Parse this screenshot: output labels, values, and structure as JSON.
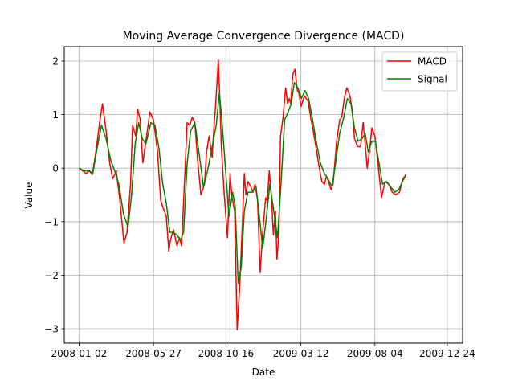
{
  "chart_data": {
    "type": "line",
    "title": "Moving Average Convergence Divergence (MACD)",
    "xlabel": "Date",
    "ylabel": "Value",
    "x_start": "2008-01-02",
    "x_end": "2009-12-31",
    "xlim": [
      "2007-12-04",
      "2010-01-23"
    ],
    "ylim": [
      -3.27,
      2.27
    ],
    "grid": true,
    "legend_position": "top-right",
    "x_ticks": [
      "2008-01-02",
      "2008-05-27",
      "2008-10-16",
      "2009-03-12",
      "2009-08-04",
      "2009-12-24"
    ],
    "y_ticks": [
      -3,
      -2,
      -1,
      0,
      1,
      2
    ],
    "series": [
      {
        "name": "MACD",
        "color": "#ff0000",
        "points": [
          [
            "2008-01-02",
            0.0
          ],
          [
            "2008-01-09",
            -0.05
          ],
          [
            "2008-01-16",
            -0.1
          ],
          [
            "2008-01-22",
            -0.05
          ],
          [
            "2008-01-28",
            -0.12
          ],
          [
            "2008-02-04",
            0.3
          ],
          [
            "2008-02-12",
            0.9
          ],
          [
            "2008-02-17",
            1.2
          ],
          [
            "2008-02-24",
            0.7
          ],
          [
            "2008-03-02",
            0.1
          ],
          [
            "2008-03-08",
            -0.2
          ],
          [
            "2008-03-15",
            -0.05
          ],
          [
            "2008-03-22",
            -0.6
          ],
          [
            "2008-03-30",
            -1.4
          ],
          [
            "2008-04-05",
            -1.2
          ],
          [
            "2008-04-12",
            -0.3
          ],
          [
            "2008-04-16",
            0.8
          ],
          [
            "2008-04-22",
            0.6
          ],
          [
            "2008-04-26",
            1.1
          ],
          [
            "2008-05-01",
            0.9
          ],
          [
            "2008-05-06",
            0.1
          ],
          [
            "2008-05-12",
            0.5
          ],
          [
            "2008-05-20",
            1.05
          ],
          [
            "2008-05-27",
            0.9
          ],
          [
            "2008-06-04",
            0.3
          ],
          [
            "2008-06-10",
            -0.6
          ],
          [
            "2008-06-15",
            -0.75
          ],
          [
            "2008-06-21",
            -0.9
          ],
          [
            "2008-06-26",
            -1.55
          ],
          [
            "2008-06-29",
            -1.35
          ],
          [
            "2008-07-05",
            -1.15
          ],
          [
            "2008-07-12",
            -1.45
          ],
          [
            "2008-07-17",
            -1.3
          ],
          [
            "2008-07-21",
            -1.45
          ],
          [
            "2008-07-28",
            0.0
          ],
          [
            "2008-08-01",
            0.85
          ],
          [
            "2008-08-06",
            0.8
          ],
          [
            "2008-08-11",
            0.95
          ],
          [
            "2008-08-16",
            0.85
          ],
          [
            "2008-08-21",
            0.2
          ],
          [
            "2008-08-28",
            -0.5
          ],
          [
            "2008-09-04",
            -0.3
          ],
          [
            "2008-09-08",
            0.3
          ],
          [
            "2008-09-13",
            0.6
          ],
          [
            "2008-09-19",
            0.2
          ],
          [
            "2008-09-22",
            0.7
          ],
          [
            "2008-09-26",
            1.2
          ],
          [
            "2008-10-01",
            2.02
          ],
          [
            "2008-10-04",
            1.3
          ],
          [
            "2008-10-07",
            0.4
          ],
          [
            "2008-10-12",
            -0.4
          ],
          [
            "2008-10-19",
            -1.3
          ],
          [
            "2008-10-24",
            -0.1
          ],
          [
            "2008-10-28",
            -0.55
          ],
          [
            "2008-11-02",
            -0.8
          ],
          [
            "2008-11-07",
            -3.02
          ],
          [
            "2008-11-12",
            -2.2
          ],
          [
            "2008-11-17",
            -1.1
          ],
          [
            "2008-11-21",
            -0.1
          ],
          [
            "2008-11-24",
            -0.5
          ],
          [
            "2008-11-28",
            -0.25
          ],
          [
            "2008-12-04",
            -0.35
          ],
          [
            "2008-12-08",
            -0.45
          ],
          [
            "2008-12-12",
            -0.3
          ],
          [
            "2008-12-17",
            -0.6
          ],
          [
            "2008-12-22",
            -1.95
          ],
          [
            "2008-12-27",
            -1.2
          ],
          [
            "2009-01-02",
            -0.55
          ],
          [
            "2009-01-05",
            -0.6
          ],
          [
            "2009-01-09",
            -0.05
          ],
          [
            "2009-01-13",
            -0.5
          ],
          [
            "2009-01-17",
            -1.25
          ],
          [
            "2009-01-21",
            -0.8
          ],
          [
            "2009-01-24",
            -1.7
          ],
          [
            "2009-01-28",
            -1.2
          ],
          [
            "2009-01-31",
            0.6
          ],
          [
            "2009-02-05",
            0.95
          ],
          [
            "2009-02-10",
            1.5
          ],
          [
            "2009-02-14",
            1.2
          ],
          [
            "2009-02-17",
            1.3
          ],
          [
            "2009-02-20",
            1.2
          ],
          [
            "2009-02-24",
            1.75
          ],
          [
            "2009-02-28",
            1.85
          ],
          [
            "2009-03-05",
            1.45
          ],
          [
            "2009-03-08",
            1.4
          ],
          [
            "2009-03-12",
            1.15
          ],
          [
            "2009-03-19",
            1.35
          ],
          [
            "2009-03-26",
            1.25
          ],
          [
            "2009-04-01",
            0.9
          ],
          [
            "2009-04-06",
            0.65
          ],
          [
            "2009-04-12",
            0.3
          ],
          [
            "2009-04-18",
            -0.05
          ],
          [
            "2009-04-22",
            -0.25
          ],
          [
            "2009-04-27",
            -0.3
          ],
          [
            "2009-05-01",
            -0.15
          ],
          [
            "2009-05-05",
            -0.25
          ],
          [
            "2009-05-10",
            -0.4
          ],
          [
            "2009-05-14",
            -0.3
          ],
          [
            "2009-05-21",
            0.5
          ],
          [
            "2009-05-27",
            0.9
          ],
          [
            "2009-05-31",
            0.95
          ],
          [
            "2009-06-05",
            1.3
          ],
          [
            "2009-06-10",
            1.5
          ],
          [
            "2009-06-16",
            1.35
          ],
          [
            "2009-06-21",
            1.05
          ],
          [
            "2009-06-25",
            0.55
          ],
          [
            "2009-07-01",
            0.4
          ],
          [
            "2009-07-07",
            0.4
          ],
          [
            "2009-07-12",
            0.85
          ],
          [
            "2009-07-16",
            0.45
          ],
          [
            "2009-07-20",
            0.0
          ],
          [
            "2009-07-25",
            0.35
          ],
          [
            "2009-07-29",
            0.75
          ],
          [
            "2009-08-04",
            0.6
          ],
          [
            "2009-08-11",
            0.0
          ],
          [
            "2009-08-17",
            -0.55
          ],
          [
            "2009-08-24",
            -0.25
          ],
          [
            "2009-08-31",
            -0.3
          ],
          [
            "2009-09-07",
            -0.45
          ],
          [
            "2009-09-14",
            -0.5
          ],
          [
            "2009-09-21",
            -0.45
          ],
          [
            "2009-09-28",
            -0.2
          ],
          [
            "2009-10-04",
            -0.12
          ]
        ]
      },
      {
        "name": "Signal",
        "color": "#008000",
        "points": [
          [
            "2008-01-02",
            0.0
          ],
          [
            "2008-01-12",
            -0.05
          ],
          [
            "2008-01-22",
            -0.05
          ],
          [
            "2008-01-29",
            -0.1
          ],
          [
            "2008-02-06",
            0.35
          ],
          [
            "2008-02-15",
            0.8
          ],
          [
            "2008-02-24",
            0.55
          ],
          [
            "2008-03-04",
            0.15
          ],
          [
            "2008-03-12",
            -0.05
          ],
          [
            "2008-03-20",
            -0.3
          ],
          [
            "2008-03-29",
            -0.85
          ],
          [
            "2008-04-07",
            -1.1
          ],
          [
            "2008-04-14",
            -0.5
          ],
          [
            "2008-04-21",
            0.45
          ],
          [
            "2008-04-28",
            0.85
          ],
          [
            "2008-05-05",
            0.55
          ],
          [
            "2008-05-12",
            0.45
          ],
          [
            "2008-05-22",
            0.85
          ],
          [
            "2008-05-30",
            0.8
          ],
          [
            "2008-06-07",
            0.35
          ],
          [
            "2008-06-14",
            -0.3
          ],
          [
            "2008-06-21",
            -0.65
          ],
          [
            "2008-06-28",
            -1.2
          ],
          [
            "2008-07-05",
            -1.2
          ],
          [
            "2008-07-12",
            -1.25
          ],
          [
            "2008-07-19",
            -1.35
          ],
          [
            "2008-07-25",
            -1.2
          ],
          [
            "2008-08-01",
            0.1
          ],
          [
            "2008-08-08",
            0.7
          ],
          [
            "2008-08-16",
            0.85
          ],
          [
            "2008-08-24",
            0.3
          ],
          [
            "2008-09-02",
            -0.35
          ],
          [
            "2008-09-10",
            -0.05
          ],
          [
            "2008-09-18",
            0.35
          ],
          [
            "2008-09-27",
            0.8
          ],
          [
            "2008-10-03",
            1.4
          ],
          [
            "2008-10-08",
            0.9
          ],
          [
            "2008-10-15",
            0.0
          ],
          [
            "2008-10-22",
            -0.9
          ],
          [
            "2008-10-29",
            -0.45
          ],
          [
            "2008-11-03",
            -0.7
          ],
          [
            "2008-11-09",
            -2.15
          ],
          [
            "2008-11-15",
            -1.85
          ],
          [
            "2008-11-21",
            -0.8
          ],
          [
            "2008-11-28",
            -0.45
          ],
          [
            "2008-12-06",
            -0.45
          ],
          [
            "2008-12-14",
            -0.35
          ],
          [
            "2008-12-20",
            -0.85
          ],
          [
            "2008-12-27",
            -1.5
          ],
          [
            "2009-01-03",
            -0.95
          ],
          [
            "2009-01-10",
            -0.3
          ],
          [
            "2009-01-17",
            -0.75
          ],
          [
            "2009-01-25",
            -1.3
          ],
          [
            "2009-02-01",
            -0.3
          ],
          [
            "2009-02-08",
            0.9
          ],
          [
            "2009-02-15",
            1.05
          ],
          [
            "2009-02-21",
            1.2
          ],
          [
            "2009-02-27",
            1.6
          ],
          [
            "2009-03-06",
            1.5
          ],
          [
            "2009-03-13",
            1.3
          ],
          [
            "2009-03-20",
            1.45
          ],
          [
            "2009-03-27",
            1.3
          ],
          [
            "2009-04-03",
            0.95
          ],
          [
            "2009-04-11",
            0.5
          ],
          [
            "2009-04-19",
            0.1
          ],
          [
            "2009-04-27",
            -0.1
          ],
          [
            "2009-05-04",
            -0.2
          ],
          [
            "2009-05-12",
            -0.35
          ],
          [
            "2009-05-19",
            0.1
          ],
          [
            "2009-05-27",
            0.65
          ],
          [
            "2009-06-04",
            0.95
          ],
          [
            "2009-06-11",
            1.3
          ],
          [
            "2009-06-18",
            1.2
          ],
          [
            "2009-06-25",
            0.75
          ],
          [
            "2009-07-02",
            0.5
          ],
          [
            "2009-07-10",
            0.55
          ],
          [
            "2009-07-16",
            0.65
          ],
          [
            "2009-07-22",
            0.3
          ],
          [
            "2009-07-29",
            0.5
          ],
          [
            "2009-08-05",
            0.5
          ],
          [
            "2009-08-12",
            0.1
          ],
          [
            "2009-08-19",
            -0.3
          ],
          [
            "2009-08-27",
            -0.25
          ],
          [
            "2009-09-04",
            -0.35
          ],
          [
            "2009-09-12",
            -0.45
          ],
          [
            "2009-09-20",
            -0.4
          ],
          [
            "2009-09-27",
            -0.25
          ],
          [
            "2009-10-03",
            -0.15
          ]
        ]
      }
    ]
  }
}
